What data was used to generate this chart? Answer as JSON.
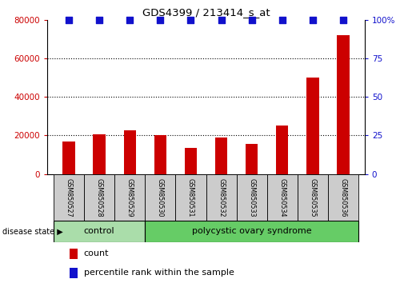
{
  "title": "GDS4399 / 213414_s_at",
  "samples": [
    "GSM850527",
    "GSM850528",
    "GSM850529",
    "GSM850530",
    "GSM850531",
    "GSM850532",
    "GSM850533",
    "GSM850534",
    "GSM850535",
    "GSM850536"
  ],
  "counts": [
    17000,
    20500,
    22500,
    20000,
    13500,
    19000,
    15500,
    25000,
    50000,
    72000
  ],
  "bar_color": "#cc0000",
  "percentile_color": "#1111cc",
  "left_ylim": [
    0,
    80000
  ],
  "left_yticks": [
    0,
    20000,
    40000,
    60000,
    80000
  ],
  "right_ylim": [
    0,
    100
  ],
  "right_yticks": [
    0,
    25,
    50,
    75,
    100
  ],
  "right_yticklabels": [
    "0",
    "25",
    "50",
    "75",
    "100%"
  ],
  "control_samples": 3,
  "control_label": "control",
  "disease_label": "polycystic ovary syndrome",
  "group_label": "disease state",
  "control_color": "#aaddaa",
  "disease_color": "#66cc66",
  "sample_box_color": "#cccccc",
  "legend_count_label": "count",
  "legend_percentile_label": "percentile rank within the sample",
  "bar_width": 0.4,
  "dotted_lines": [
    20000,
    40000,
    60000
  ],
  "percentile_pct": 100
}
